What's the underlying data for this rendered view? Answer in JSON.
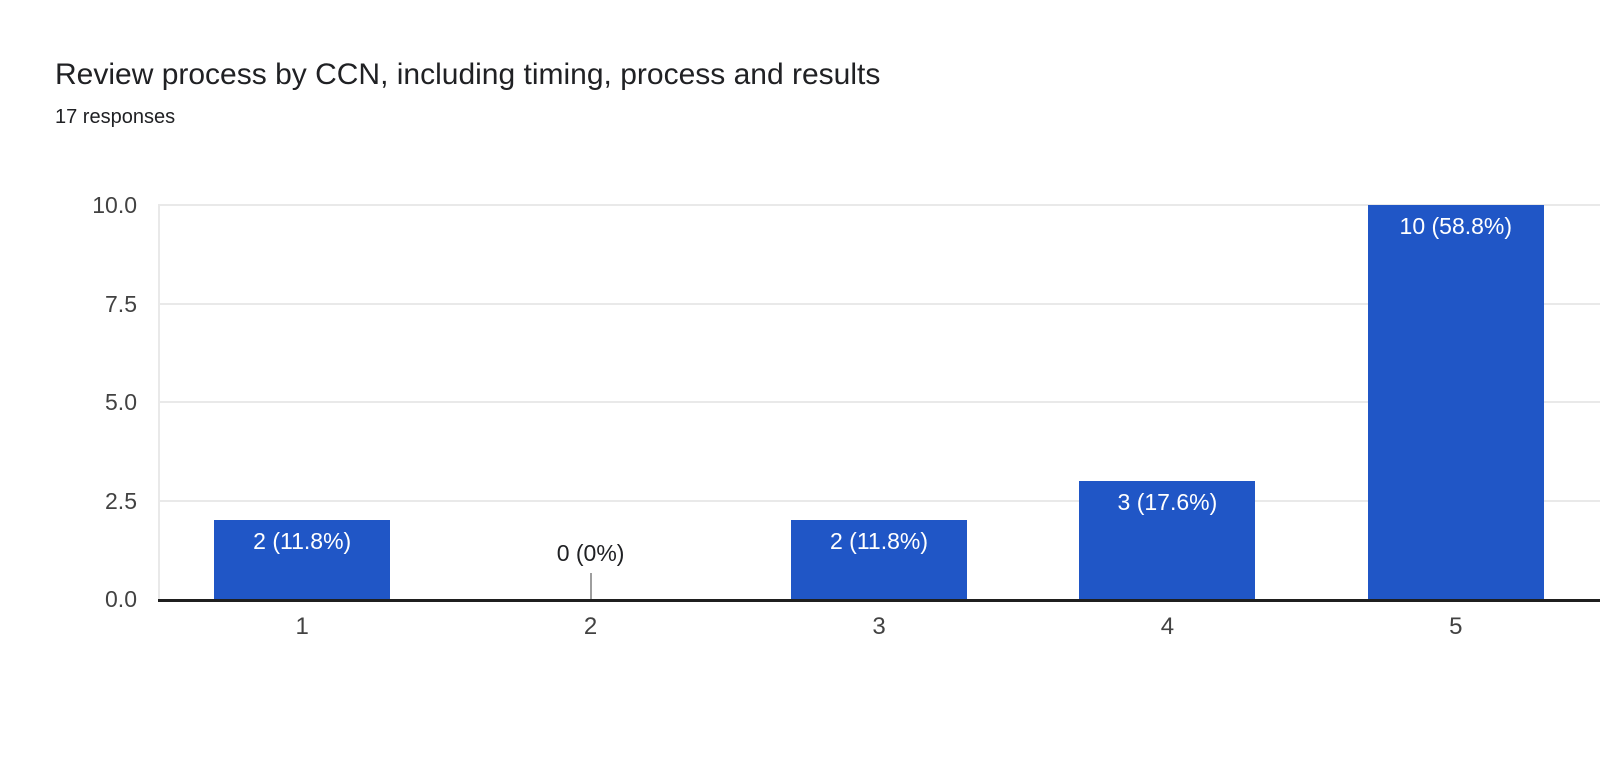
{
  "header": {
    "title": "Review process by CCN, including timing, process and results",
    "subtitle": "17 responses"
  },
  "chart_data": {
    "type": "bar",
    "title": "Review process by CCN, including timing, process and results",
    "subtitle": "17 responses",
    "categories": [
      "1",
      "2",
      "3",
      "4",
      "5"
    ],
    "values": [
      2,
      0,
      2,
      3,
      10
    ],
    "bar_labels": [
      "2 (11.8%)",
      "0 (0%)",
      "2 (11.8%)",
      "3 (17.6%)",
      "10 (58.8%)"
    ],
    "xlabel": "",
    "ylabel": "",
    "ylim": [
      0,
      10
    ],
    "y_ticks": [
      0.0,
      2.5,
      5.0,
      7.5,
      10.0
    ],
    "y_tick_labels": [
      "0.0",
      "2.5",
      "5.0",
      "7.5",
      "10.0"
    ],
    "grid": true,
    "legend": false,
    "colors": {
      "bar": "#2056c6",
      "bar_label_text": "#ffffff",
      "zero_label_text": "#202124",
      "zero_callout_line": "#9e9e9e",
      "gridline": "#e9e9e9",
      "axis_line": "#1f1f1f",
      "tick_text": "#424242",
      "title_text": "#202124"
    }
  }
}
